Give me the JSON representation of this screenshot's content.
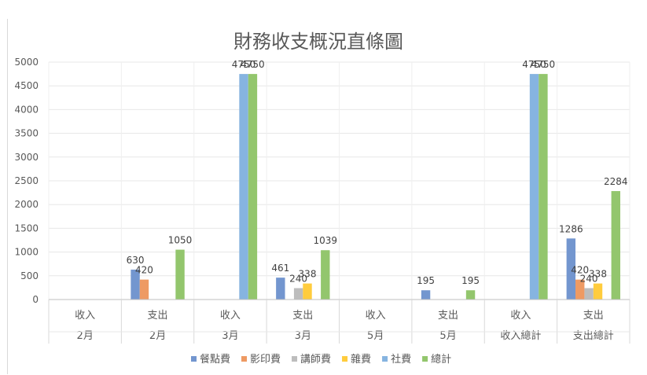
{
  "chart_data": {
    "type": "bar",
    "title": "財務收支概況直條圖",
    "ylim": [
      0,
      5000
    ],
    "yticks": [
      0,
      500,
      1000,
      1500,
      2000,
      2500,
      3000,
      3500,
      4000,
      4500,
      5000
    ],
    "grid": true,
    "legend_position": "bottom",
    "categories": [
      {
        "inner": "收入",
        "outer": "2月"
      },
      {
        "inner": "支出",
        "outer": "2月"
      },
      {
        "inner": "收入",
        "outer": "3月"
      },
      {
        "inner": "支出",
        "outer": "3月"
      },
      {
        "inner": "收入",
        "outer": "5月"
      },
      {
        "inner": "支出",
        "outer": "5月"
      },
      {
        "inner": "收入",
        "outer": "收入總計"
      },
      {
        "inner": "支出",
        "outer": "支出總計"
      }
    ],
    "series": [
      {
        "name": "餐點費",
        "color": "#7396cf",
        "values": [
          null,
          630,
          null,
          461,
          null,
          195,
          null,
          1286
        ]
      },
      {
        "name": "影印費",
        "color": "#ee9a63",
        "values": [
          null,
          420,
          null,
          null,
          null,
          null,
          null,
          420
        ]
      },
      {
        "name": "講師費",
        "color": "#bdbdbd",
        "values": [
          null,
          null,
          null,
          240,
          null,
          null,
          null,
          240
        ]
      },
      {
        "name": "雜費",
        "color": "#ffcc3d",
        "values": [
          null,
          null,
          null,
          338,
          null,
          null,
          null,
          338
        ]
      },
      {
        "name": "社費",
        "color": "#86b4e0",
        "values": [
          null,
          null,
          4750,
          null,
          null,
          null,
          4750,
          null
        ]
      },
      {
        "name": "總計",
        "color": "#93c66d",
        "values": [
          null,
          1050,
          4750,
          1039,
          null,
          195,
          4750,
          2284
        ]
      }
    ]
  }
}
